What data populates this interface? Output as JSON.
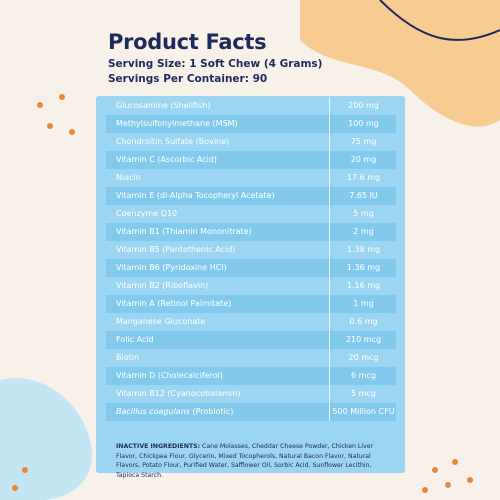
{
  "header": {
    "title": "Product Facts",
    "serving_size": "Serving Size: 1 Soft Chew (4 Grams)",
    "servings_per_container": "Servings Per Container: 90"
  },
  "table": {
    "rows": [
      {
        "name": "Glucosamine (Shellfish)",
        "amount": "200 mg"
      },
      {
        "name": "Methylsulfonylmethane (MSM)",
        "amount": "100 mg"
      },
      {
        "name": "Chondroitin Sulfate (Bovine)",
        "amount": "75 mg"
      },
      {
        "name": "Vitamin C (Ascorbic Acid)",
        "amount": "20 mg"
      },
      {
        "name": "Niacin",
        "amount": "17.6 mg"
      },
      {
        "name": "Vitamin E (dl-Alpha Tocopheryl Acetate)",
        "amount": "7.65 IU"
      },
      {
        "name": "Coenzyme Q10",
        "amount": "5 mg"
      },
      {
        "name": "Vitamin B1 (Thiamin Mononitrate)",
        "amount": "2 mg"
      },
      {
        "name": "Vitamin B5 (Pantothenic Acid)",
        "amount": "1.38 mg"
      },
      {
        "name": "Vitamin B6 (Pyridoxine HCl)",
        "amount": "1.36 mg"
      },
      {
        "name": "Vitamin B2 (Riboflavin)",
        "amount": "1.16 mg"
      },
      {
        "name": "Vitamin A (Retinol Palmitate)",
        "amount": "1 mg"
      },
      {
        "name": "Manganese Gluconate",
        "amount": "0.6 mg"
      },
      {
        "name": "Folic Acid",
        "amount": "210 mcg"
      },
      {
        "name": "Biotin",
        "amount": "20 mcg"
      },
      {
        "name": "Vitamin D (Cholecalciferol)",
        "amount": "6 mcg"
      },
      {
        "name": "Vitamin B12 (Cyanocobalamin)",
        "amount": "5 mcg"
      },
      {
        "name_italic": "Bacillus coagulans",
        "name": "(Probiotic)",
        "amount": "500 Million CFU"
      }
    ]
  },
  "inactive": {
    "label": "INACTIVE INGREDIENTS:",
    "text": "Cane Molasses, Cheddar Cheese Powder, Chicken Liver Flavor, Chickpea Flour, Glycerin, Mixed Tocopherols, Natural Bacon Flavor, Natural Flavors, Potato Flour, Purified Water, Safflower Oil, Sorbic Acid, Sunflower Lecithin, Tapioca Starch."
  }
}
